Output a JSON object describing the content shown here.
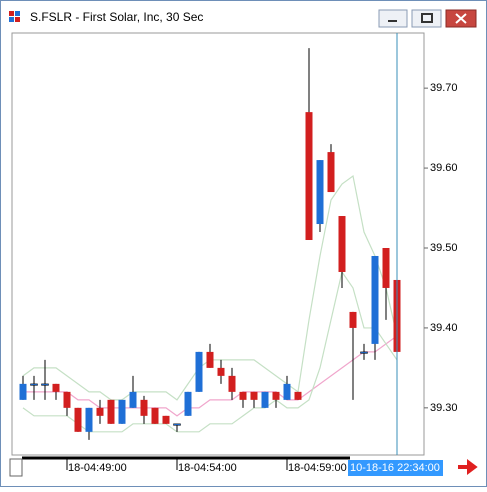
{
  "chart_data": {
    "type": "candlestick",
    "title": "S.FSLR - First Solar, Inc, 30 Sec",
    "categories": [
      null,
      null,
      null,
      null,
      "18-04:49:00",
      null,
      null,
      null,
      null,
      null,
      null,
      null,
      null,
      null,
      "18-04:54:00",
      null,
      null,
      null,
      null,
      null,
      null,
      null,
      null,
      null,
      "18-04:59:00",
      null,
      null,
      null,
      null,
      null,
      null,
      null,
      null,
      null,
      null
    ],
    "open": [
      39.31,
      39.33,
      39.33,
      39.33,
      39.32,
      39.3,
      39.27,
      39.3,
      39.31,
      39.28,
      39.3,
      39.31,
      39.3,
      39.29,
      39.28,
      39.29,
      39.32,
      39.37,
      39.35,
      39.34,
      39.32,
      39.32,
      39.3,
      39.32,
      39.31,
      39.32,
      39.67,
      39.53,
      39.62,
      39.54,
      39.42,
      39.37,
      39.38,
      39.5,
      39.46
    ],
    "high": [
      39.34,
      39.34,
      39.36,
      39.33,
      39.32,
      39.3,
      39.3,
      39.31,
      39.31,
      39.31,
      39.34,
      39.315,
      39.3,
      39.29,
      39.28,
      39.32,
      39.37,
      39.38,
      39.36,
      39.35,
      39.32,
      39.32,
      39.32,
      39.32,
      39.34,
      39.32,
      39.75,
      39.61,
      39.63,
      39.54,
      39.42,
      39.38,
      39.49,
      39.5,
      39.46
    ],
    "low": [
      39.31,
      39.31,
      39.31,
      39.31,
      39.29,
      39.27,
      39.26,
      39.28,
      39.28,
      39.28,
      39.3,
      39.28,
      39.28,
      39.28,
      39.27,
      39.29,
      39.32,
      39.35,
      39.33,
      39.31,
      39.3,
      39.3,
      39.3,
      39.3,
      39.31,
      39.31,
      39.51,
      39.52,
      39.57,
      39.45,
      39.31,
      39.36,
      39.36,
      39.41,
      39.35
    ],
    "close": [
      39.33,
      39.33,
      39.33,
      39.32,
      39.3,
      39.27,
      39.3,
      39.29,
      39.28,
      39.31,
      39.32,
      39.29,
      39.28,
      39.28,
      39.28,
      39.32,
      39.37,
      39.35,
      39.34,
      39.32,
      39.31,
      39.31,
      39.32,
      39.31,
      39.33,
      39.31,
      39.51,
      39.61,
      39.57,
      39.47,
      39.4,
      39.37,
      39.49,
      39.45,
      39.37
    ],
    "up_color": "#1f6fd6",
    "down_color": "#d21f1f",
    "overlays": [
      {
        "color": "#c5e0c5",
        "values": [
          39.34,
          39.35,
          39.35,
          39.35,
          39.34,
          39.33,
          39.32,
          39.32,
          39.31,
          39.31,
          39.32,
          39.32,
          39.32,
          39.32,
          39.31,
          39.33,
          39.35,
          39.36,
          39.36,
          39.36,
          39.36,
          39.36,
          39.35,
          39.34,
          39.33,
          39.32,
          39.41,
          39.49,
          39.56,
          39.58,
          39.59,
          39.52,
          39.49,
          39.45,
          39.39
        ]
      },
      {
        "color": "#f0a6cc",
        "values": [
          39.32,
          39.32,
          39.32,
          39.32,
          39.32,
          39.31,
          39.31,
          39.3,
          39.3,
          39.3,
          39.3,
          39.3,
          39.3,
          39.3,
          39.29,
          39.3,
          39.3,
          39.31,
          39.31,
          39.31,
          39.32,
          39.32,
          39.32,
          39.32,
          39.31,
          39.31,
          39.32,
          39.33,
          39.34,
          39.35,
          39.36,
          39.37,
          39.37,
          39.38,
          39.39
        ]
      },
      {
        "color": "#c5e0c5",
        "values": [
          39.3,
          39.29,
          39.29,
          39.29,
          39.29,
          39.28,
          39.27,
          39.27,
          39.27,
          39.27,
          39.28,
          39.28,
          39.28,
          39.28,
          39.27,
          39.27,
          39.27,
          39.28,
          39.28,
          39.28,
          39.29,
          39.3,
          39.3,
          39.31,
          39.3,
          39.3,
          39.31,
          39.35,
          39.41,
          39.47,
          39.45,
          39.4,
          39.4,
          39.38,
          39.36
        ]
      }
    ],
    "ylim": [
      39.241,
      39.769
    ],
    "yticks": [
      {
        "value": 39.3,
        "label": "39.30"
      },
      {
        "value": 39.4,
        "label": "39.40"
      },
      {
        "value": 39.5,
        "label": "39.50"
      },
      {
        "value": 39.6,
        "label": "39.60"
      },
      {
        "value": 39.7,
        "label": "39.70"
      }
    ],
    "cursor_label": "10-18-16 22:34:00"
  }
}
